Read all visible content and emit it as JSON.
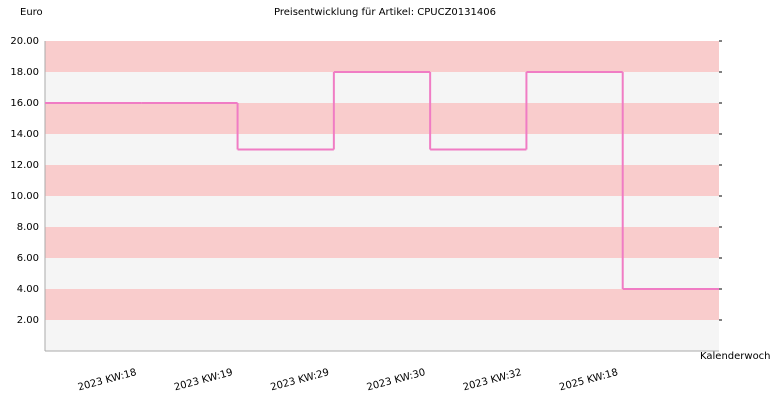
{
  "chart_data": {
    "type": "step",
    "title": "Preisentwicklung für Artikel: CPUCZ0131406",
    "y_label": "Euro",
    "x_label": "Kalenderwoche",
    "categories": [
      null,
      "2023 KW:18",
      "2023 KW:19",
      "2023 KW:29",
      "2023 KW:30",
      "2023 KW:32",
      "2025 KW:18"
    ],
    "values": [
      16,
      16,
      13,
      18,
      13,
      18,
      4
    ],
    "color": "#f07cc4",
    "band_colors": [
      "#f9cccc",
      "#f5f5f5"
    ],
    "ylim": [
      0,
      20
    ],
    "yticks": [
      {
        "value": 2,
        "label": "2.00"
      },
      {
        "value": 4,
        "label": "4.00"
      },
      {
        "value": 6,
        "label": "6.00"
      },
      {
        "value": 8,
        "label": "8.00"
      },
      {
        "value": 10,
        "label": "10.00"
      },
      {
        "value": 12,
        "label": "12.00"
      },
      {
        "value": 14,
        "label": "14.00"
      },
      {
        "value": 16,
        "label": "16.00"
      },
      {
        "value": 18,
        "label": "18.00"
      },
      {
        "value": 20,
        "label": "20.00"
      }
    ]
  }
}
